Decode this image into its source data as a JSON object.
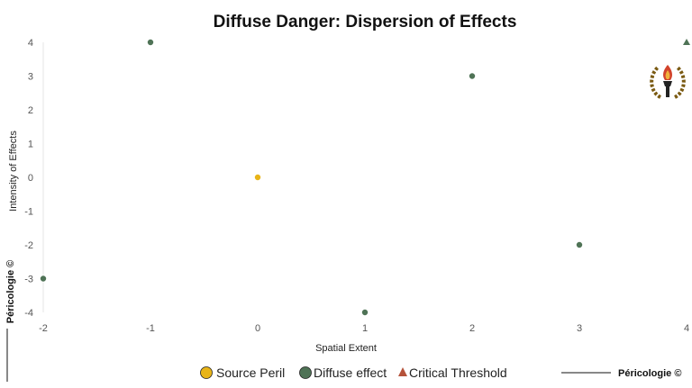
{
  "chart_data": {
    "type": "scatter",
    "title": "Diffuse Danger: Dispersion of Effects",
    "xlabel": "Spatial Extent",
    "ylabel": "Intensity of Effects",
    "xlim": [
      -2,
      4
    ],
    "ylim": [
      -4,
      4
    ],
    "xticks": [
      "-2",
      "-1",
      "0",
      "1",
      "2",
      "3",
      "4"
    ],
    "yticks": [
      "4",
      "3",
      "2",
      "1",
      "0",
      "-1",
      "-2",
      "-3",
      "-4"
    ],
    "grid": false,
    "legend_position": "bottom",
    "series": [
      {
        "name": "Source Peril",
        "marker": "circle",
        "color": "#e8b418",
        "x": [
          0
        ],
        "y": [
          0
        ]
      },
      {
        "name": "Diffuse effect",
        "marker": "circle",
        "color": "#4f7356",
        "x": [
          -2,
          -1,
          1,
          2,
          3
        ],
        "y": [
          -3,
          4,
          -4,
          3,
          -2
        ]
      },
      {
        "name": "Critical Threshold",
        "marker": "triangle",
        "color": "#b5523a",
        "x": [
          4
        ],
        "y": [
          4
        ]
      }
    ]
  },
  "credits": {
    "bottom_right": "Péricologie ©",
    "left_vertical": "Péricologie ©"
  },
  "logo": {
    "name": "torch-laurel-emblem"
  }
}
